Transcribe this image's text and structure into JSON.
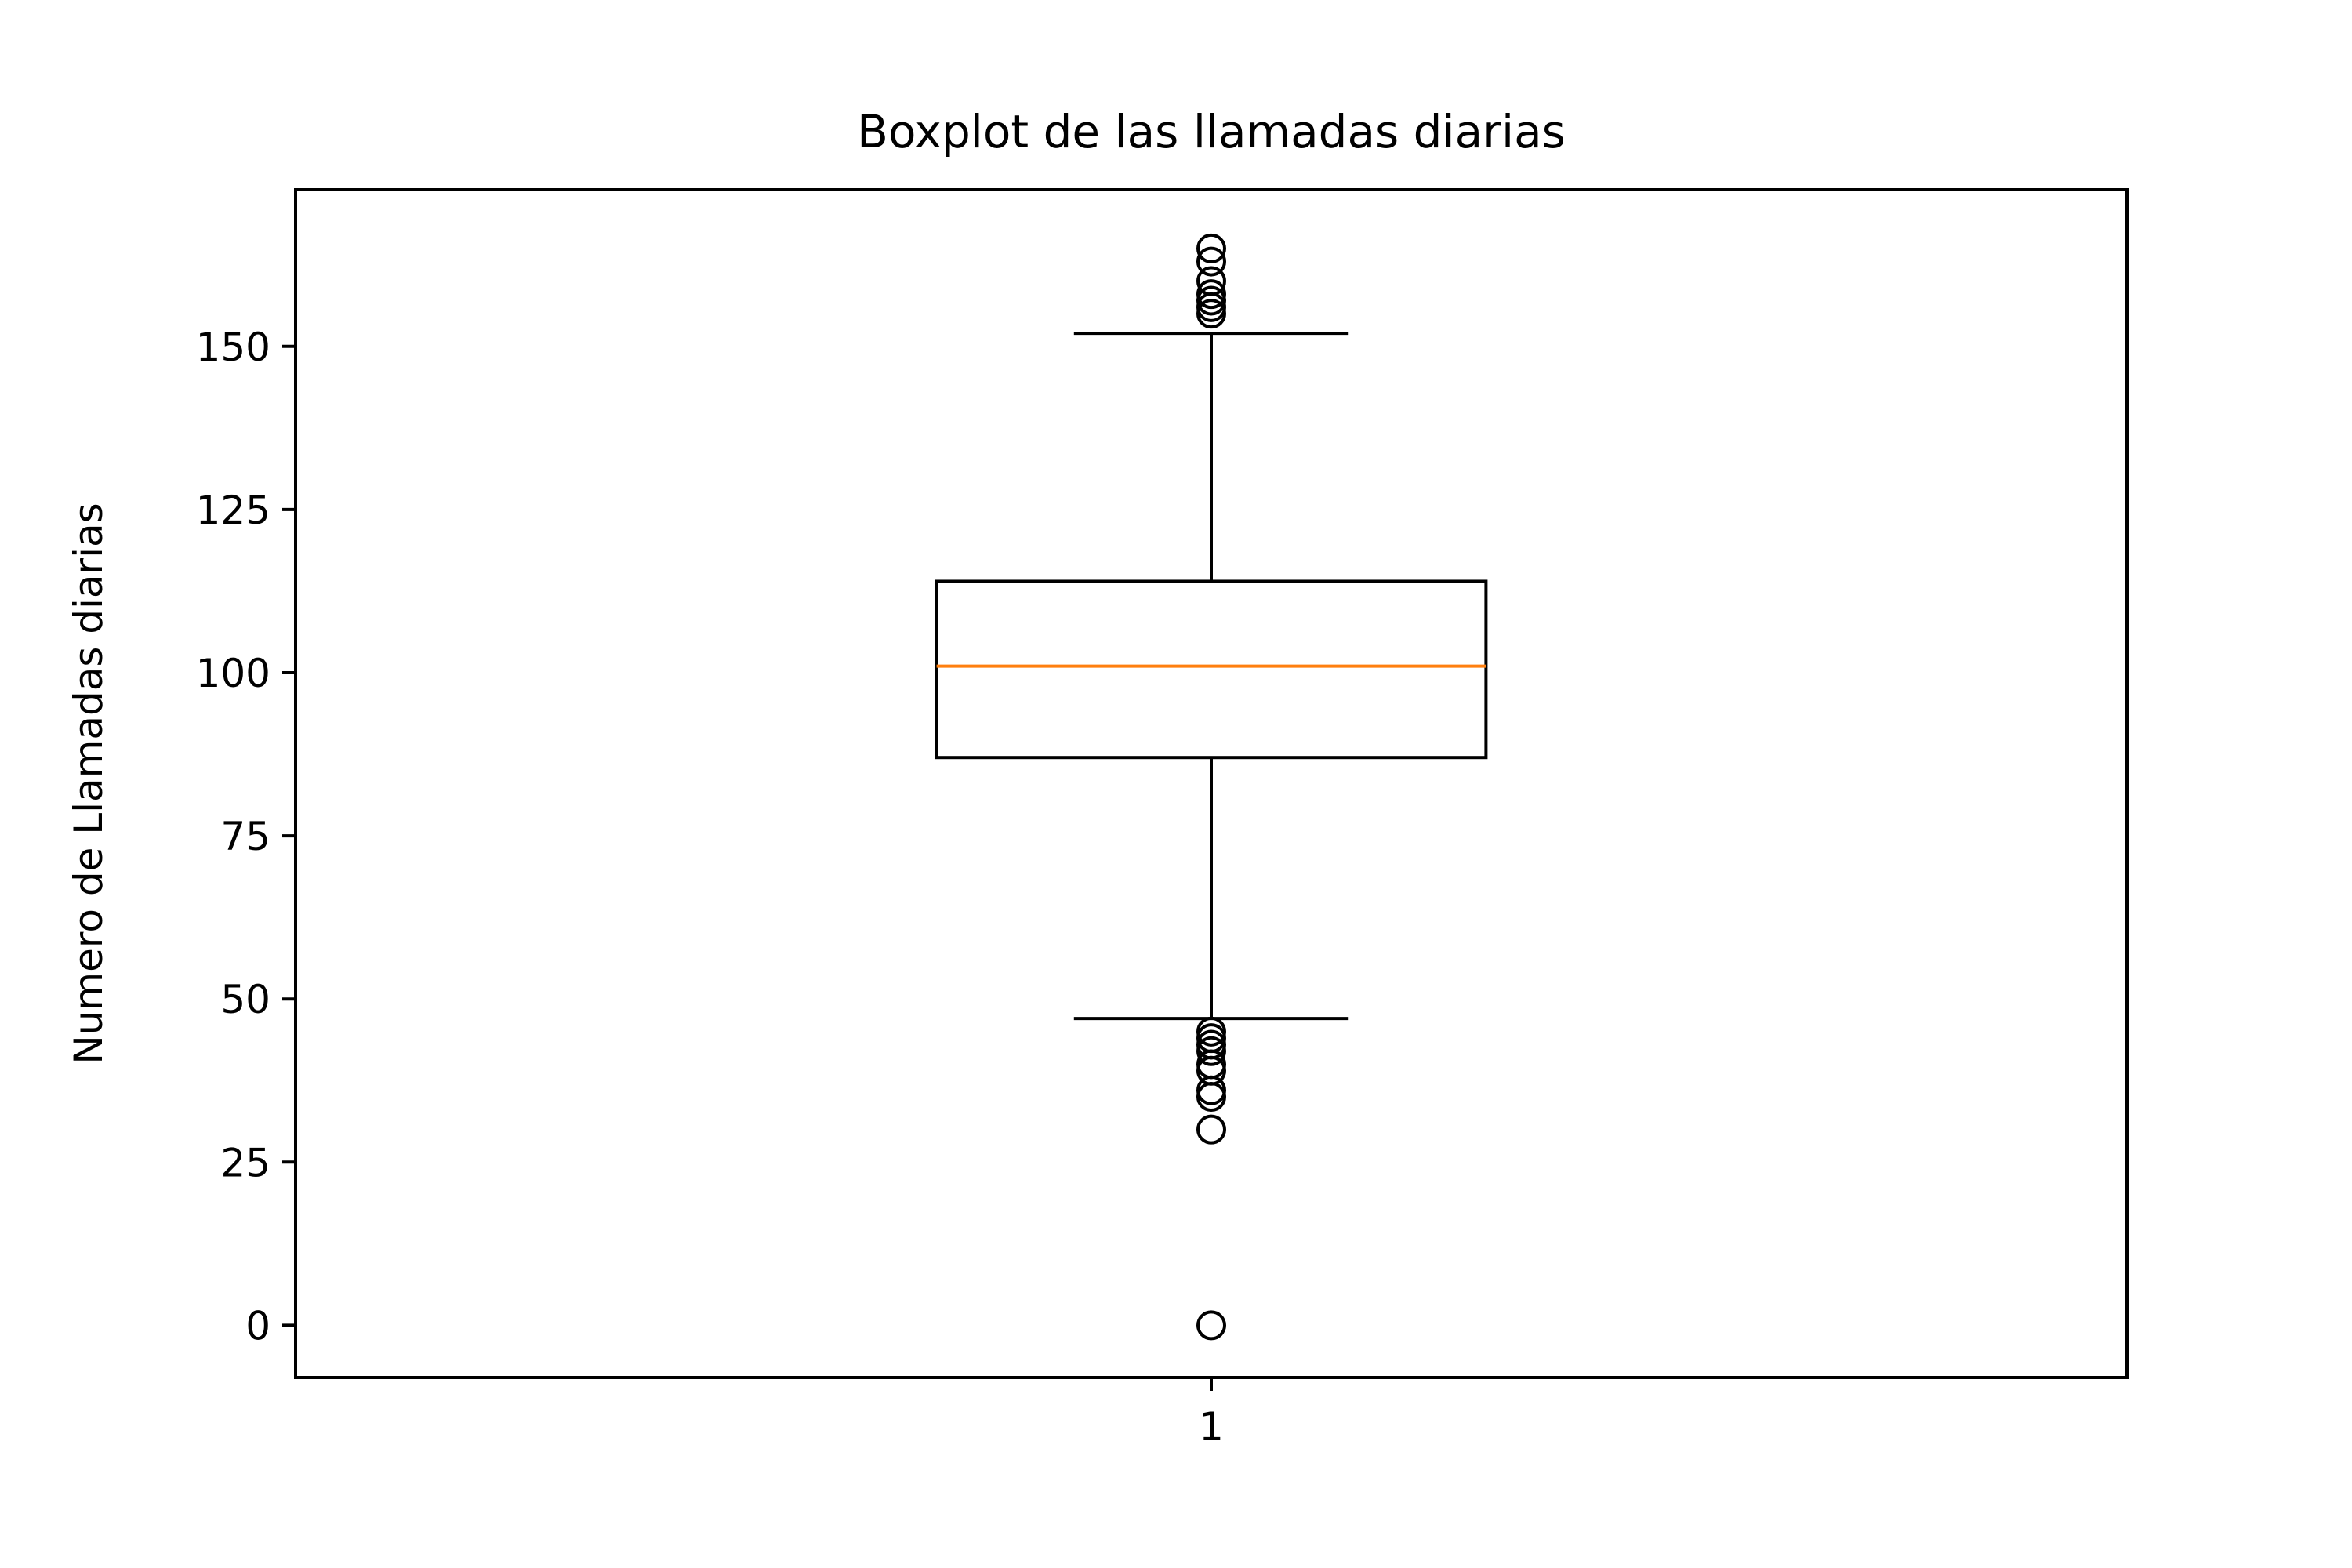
{
  "chart_data": {
    "type": "boxplot",
    "title": "Boxplot de las llamadas diarias",
    "xlabel": "",
    "ylabel": "Numero de Llamadas diarias",
    "categories": [
      "1"
    ],
    "ylim": [
      -8,
      174
    ],
    "yticks": [
      0,
      25,
      50,
      75,
      100,
      125,
      150
    ],
    "grid": false,
    "boxes": [
      {
        "category": "1",
        "q1": 87,
        "median": 101,
        "q3": 114,
        "whisker_low": 47,
        "whisker_high": 152,
        "fliers": [
          0,
          30,
          35,
          36,
          39,
          40,
          42,
          43,
          44,
          45,
          155,
          156,
          157,
          158,
          160,
          163,
          165
        ]
      }
    ],
    "colors": {
      "box": "#000000",
      "median": "#ff7f0e",
      "flier": "#000000"
    }
  }
}
